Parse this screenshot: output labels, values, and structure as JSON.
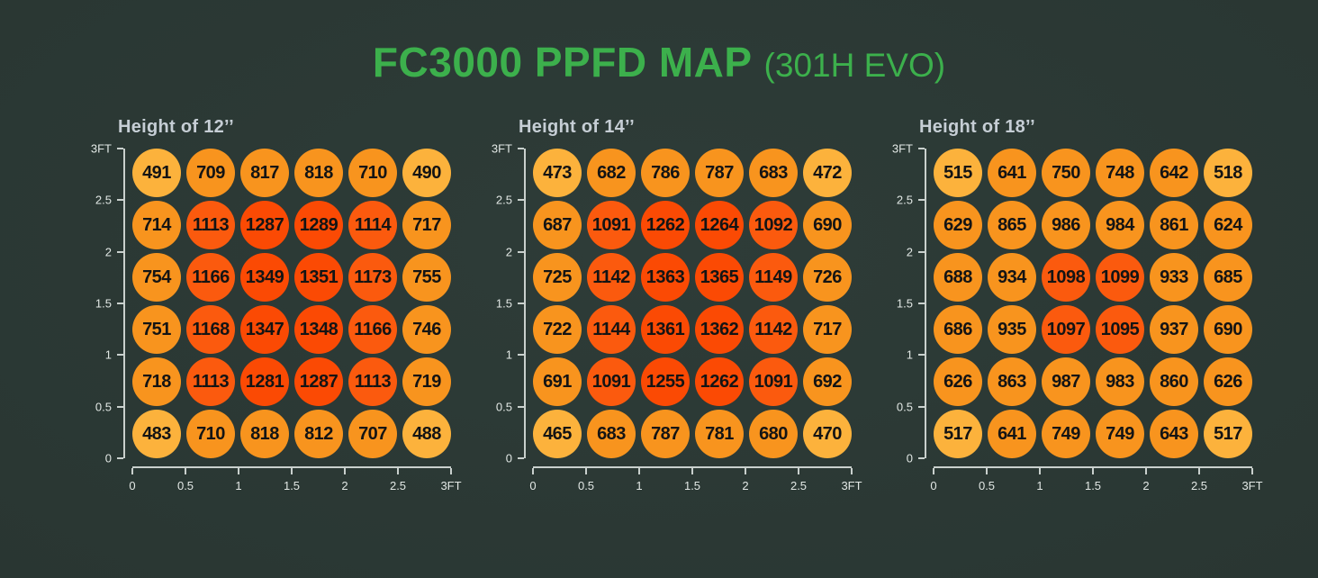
{
  "header": {
    "title": "FC3000 PPFD MAP",
    "variant": "(301H EVO)"
  },
  "theme": {
    "title_color": "#3cb04c",
    "panel_title_color": "#c6ced5",
    "axis_line_color": "#c9d0cd",
    "axis_label_color": "#e2e8e5",
    "bubble_text_color": "#141414",
    "background_center": "#2e3c38",
    "background_edge": "#223029"
  },
  "color_scale": [
    {
      "max": 549,
      "color": "#fcb23c"
    },
    {
      "max": 999,
      "color": "#f8941e"
    },
    {
      "max": 1199,
      "color": "#fb5a0e"
    },
    {
      "max": 99999,
      "color": "#fb4a04"
    }
  ],
  "chart_data": [
    {
      "type": "heatmap",
      "title": "Height of 12’’",
      "xlabel": "",
      "ylabel": "",
      "x_ticks": [
        "0",
        "0.5",
        "1",
        "1.5",
        "2",
        "2.5",
        "3FT"
      ],
      "y_ticks": [
        "3FT",
        "2.5",
        "2",
        "1.5",
        "1",
        "0.5",
        "0"
      ],
      "x_range_ft": [
        0,
        3
      ],
      "y_range_ft": [
        0,
        3
      ],
      "grid": false,
      "legend": "none",
      "rows": [
        [
          491,
          709,
          817,
          818,
          710,
          490
        ],
        [
          714,
          1113,
          1287,
          1289,
          1114,
          717
        ],
        [
          754,
          1166,
          1349,
          1351,
          1173,
          755
        ],
        [
          751,
          1168,
          1347,
          1348,
          1166,
          746
        ],
        [
          718,
          1113,
          1281,
          1287,
          1113,
          719
        ],
        [
          483,
          710,
          818,
          812,
          707,
          488
        ]
      ]
    },
    {
      "type": "heatmap",
      "title": "Height of 14’’",
      "xlabel": "",
      "ylabel": "",
      "x_ticks": [
        "0",
        "0.5",
        "1",
        "1.5",
        "2",
        "2.5",
        "3FT"
      ],
      "y_ticks": [
        "3FT",
        "2.5",
        "2",
        "1.5",
        "1",
        "0.5",
        "0"
      ],
      "x_range_ft": [
        0,
        3
      ],
      "y_range_ft": [
        0,
        3
      ],
      "grid": false,
      "legend": "none",
      "rows": [
        [
          473,
          682,
          786,
          787,
          683,
          472
        ],
        [
          687,
          1091,
          1262,
          1264,
          1092,
          690
        ],
        [
          725,
          1142,
          1363,
          1365,
          1149,
          726
        ],
        [
          722,
          1144,
          1361,
          1362,
          1142,
          717
        ],
        [
          691,
          1091,
          1255,
          1262,
          1091,
          692
        ],
        [
          465,
          683,
          787,
          781,
          680,
          470
        ]
      ]
    },
    {
      "type": "heatmap",
      "title": "Height of 18’’",
      "xlabel": "",
      "ylabel": "",
      "x_ticks": [
        "0",
        "0.5",
        "1",
        "1.5",
        "2",
        "2.5",
        "3FT"
      ],
      "y_ticks": [
        "3FT",
        "2.5",
        "2",
        "1.5",
        "1",
        "0.5",
        "0"
      ],
      "x_range_ft": [
        0,
        3
      ],
      "y_range_ft": [
        0,
        3
      ],
      "grid": false,
      "legend": "none",
      "rows": [
        [
          515,
          641,
          750,
          748,
          642,
          518
        ],
        [
          629,
          865,
          986,
          984,
          861,
          624
        ],
        [
          688,
          934,
          1098,
          1099,
          933,
          685
        ],
        [
          686,
          935,
          1097,
          1095,
          937,
          690
        ],
        [
          626,
          863,
          987,
          983,
          860,
          626
        ],
        [
          517,
          641,
          749,
          749,
          643,
          517
        ]
      ]
    }
  ]
}
